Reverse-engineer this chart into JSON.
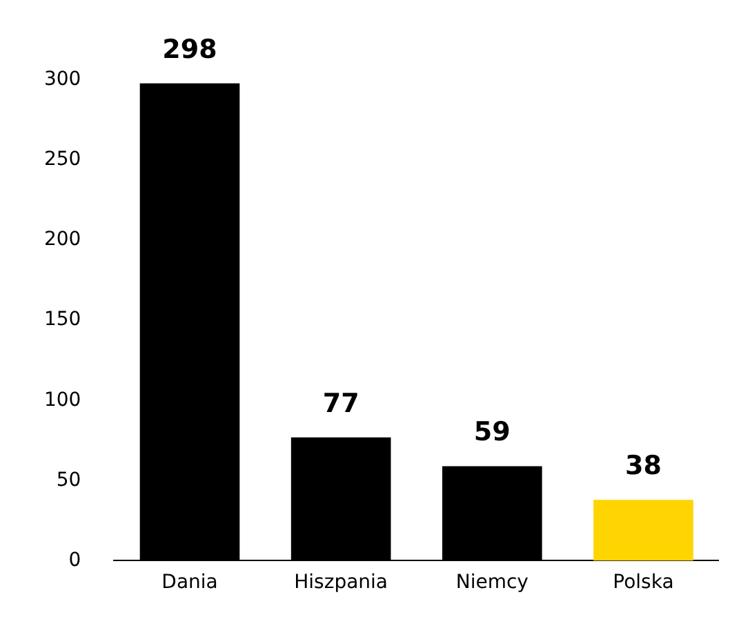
{
  "chart_data": {
    "type": "bar",
    "categories": [
      "Dania",
      "Hiszpania",
      "Niemcy",
      "Polska"
    ],
    "values": [
      298,
      77,
      59,
      38
    ],
    "colors": [
      "#000000",
      "#000000",
      "#000000",
      "#ffd400"
    ],
    "ylim": [
      0,
      300
    ],
    "yticks": [
      0,
      50,
      100,
      150,
      200,
      250,
      300
    ],
    "grid": false,
    "legend": false,
    "data_labels": true
  }
}
